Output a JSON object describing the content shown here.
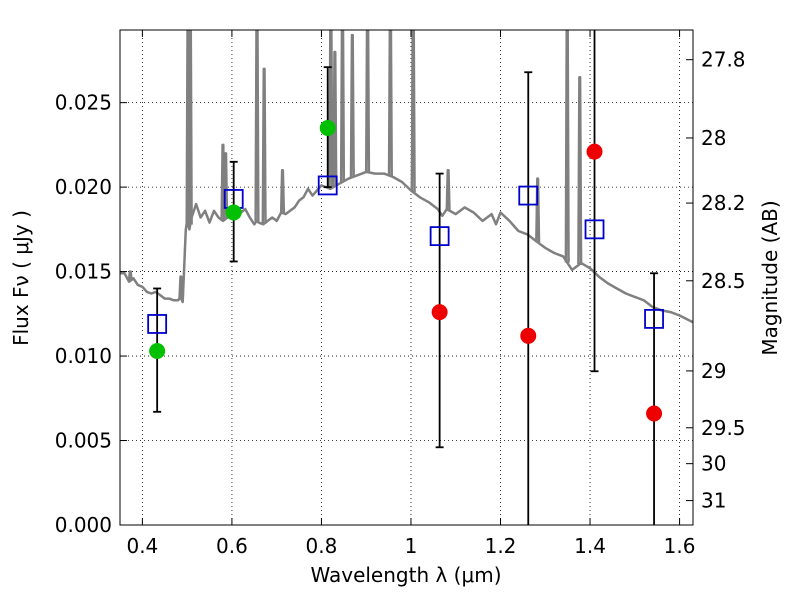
{
  "chart_data": {
    "type": "scatter",
    "xlabel": "Wavelength  λ (μm)",
    "ylabel": "Flux  Fν  ( μJy )",
    "y2label": "Magnitude (AB)",
    "xlim": [
      0.35,
      1.63
    ],
    "ylim": [
      0.0,
      0.0293
    ],
    "grid": true,
    "grid_style": "dotted",
    "x_ticks": [
      {
        "value": 0.4,
        "label": "0.4"
      },
      {
        "value": 0.6,
        "label": "0.6"
      },
      {
        "value": 0.8,
        "label": "0.8"
      },
      {
        "value": 1.0,
        "label": "1"
      },
      {
        "value": 1.2,
        "label": "1.2"
      },
      {
        "value": 1.4,
        "label": "1.4"
      },
      {
        "value": 1.6,
        "label": "1.6"
      }
    ],
    "y_ticks": [
      {
        "value": 0.0,
        "label": "0.000"
      },
      {
        "value": 0.005,
        "label": "0.005"
      },
      {
        "value": 0.01,
        "label": "0.010"
      },
      {
        "value": 0.015,
        "label": "0.015"
      },
      {
        "value": 0.02,
        "label": "0.020"
      },
      {
        "value": 0.025,
        "label": "0.025"
      }
    ],
    "y2_ticks": [
      {
        "mag": 27.8,
        "label": "27.8"
      },
      {
        "mag": 28.0,
        "label": "28"
      },
      {
        "mag": 28.2,
        "label": "28.2"
      },
      {
        "mag": 28.5,
        "label": "28.5"
      },
      {
        "mag": 29.0,
        "label": "29"
      },
      {
        "mag": 29.5,
        "label": "29.5"
      },
      {
        "mag": 30.0,
        "label": "30"
      },
      {
        "mag": 31.0,
        "label": "31"
      }
    ],
    "model_spectrum": {
      "color": "#808080",
      "points": [
        [
          0.35,
          0.0149
        ],
        [
          0.36,
          0.0149
        ],
        [
          0.37,
          0.0144
        ],
        [
          0.38,
          0.0146
        ],
        [
          0.39,
          0.0142
        ],
        [
          0.4,
          0.0141
        ],
        [
          0.41,
          0.0138
        ],
        [
          0.42,
          0.0137
        ],
        [
          0.43,
          0.0138
        ],
        [
          0.44,
          0.0136
        ],
        [
          0.45,
          0.0134
        ],
        [
          0.46,
          0.0134
        ],
        [
          0.47,
          0.0133
        ],
        [
          0.48,
          0.0133
        ],
        [
          0.485,
          0.0135
        ],
        [
          0.49,
          0.0132
        ],
        [
          0.497,
          0.0175
        ],
        [
          0.5,
          0.018
        ],
        [
          0.505,
          0.0175
        ],
        [
          0.51,
          0.0182
        ],
        [
          0.52,
          0.019
        ],
        [
          0.53,
          0.0182
        ],
        [
          0.54,
          0.0186
        ],
        [
          0.55,
          0.0179
        ],
        [
          0.56,
          0.0186
        ],
        [
          0.57,
          0.0182
        ],
        [
          0.58,
          0.018
        ],
        [
          0.59,
          0.0182
        ],
        [
          0.6,
          0.0183
        ],
        [
          0.61,
          0.0185
        ],
        [
          0.62,
          0.0185
        ],
        [
          0.63,
          0.0187
        ],
        [
          0.64,
          0.0182
        ],
        [
          0.65,
          0.0178
        ],
        [
          0.655,
          0.018
        ],
        [
          0.66,
          0.0179
        ],
        [
          0.67,
          0.0178
        ],
        [
          0.68,
          0.018
        ],
        [
          0.69,
          0.0182
        ],
        [
          0.7,
          0.018
        ],
        [
          0.71,
          0.0185
        ],
        [
          0.72,
          0.0184
        ],
        [
          0.73,
          0.0186
        ],
        [
          0.74,
          0.0188
        ],
        [
          0.75,
          0.0192
        ],
        [
          0.76,
          0.0194
        ],
        [
          0.77,
          0.0199
        ],
        [
          0.78,
          0.0195
        ],
        [
          0.79,
          0.0198
        ],
        [
          0.8,
          0.0201
        ],
        [
          0.82,
          0.0199
        ],
        [
          0.84,
          0.0202
        ],
        [
          0.86,
          0.0205
        ],
        [
          0.88,
          0.0207
        ],
        [
          0.9,
          0.0209
        ],
        [
          0.92,
          0.0208
        ],
        [
          0.94,
          0.0208
        ],
        [
          0.96,
          0.0206
        ],
        [
          0.98,
          0.0203
        ],
        [
          1.0,
          0.0198
        ],
        [
          1.02,
          0.0194
        ],
        [
          1.04,
          0.0191
        ],
        [
          1.06,
          0.0187
        ],
        [
          1.07,
          0.0183
        ],
        [
          1.08,
          0.0187
        ],
        [
          1.1,
          0.0184
        ],
        [
          1.12,
          0.0188
        ],
        [
          1.14,
          0.0185
        ],
        [
          1.16,
          0.018
        ],
        [
          1.18,
          0.0184
        ],
        [
          1.19,
          0.0178
        ],
        [
          1.2,
          0.0185
        ],
        [
          1.22,
          0.018
        ],
        [
          1.24,
          0.0174
        ],
        [
          1.26,
          0.0172
        ],
        [
          1.28,
          0.0168
        ],
        [
          1.3,
          0.0164
        ],
        [
          1.32,
          0.0161
        ],
        [
          1.34,
          0.0159
        ],
        [
          1.36,
          0.0151
        ],
        [
          1.38,
          0.0155
        ],
        [
          1.4,
          0.0152
        ],
        [
          1.42,
          0.0147
        ],
        [
          1.44,
          0.0143
        ],
        [
          1.46,
          0.014
        ],
        [
          1.48,
          0.0137
        ],
        [
          1.5,
          0.0135
        ],
        [
          1.52,
          0.0133
        ],
        [
          1.54,
          0.0129
        ],
        [
          1.56,
          0.0127
        ],
        [
          1.58,
          0.0126
        ],
        [
          1.6,
          0.0124
        ],
        [
          1.63,
          0.012
        ]
      ],
      "emission_lines": [
        {
          "x": 0.373,
          "peak": 0.015
        },
        {
          "x": 0.486,
          "peak": 0.0147
        },
        {
          "x": 0.502,
          "peak": 0.0293
        },
        {
          "x": 0.507,
          "peak": 0.0293
        },
        {
          "x": 0.58,
          "peak": 0.0225
        },
        {
          "x": 0.586,
          "peak": 0.022
        },
        {
          "x": 0.656,
          "peak": 0.0293
        },
        {
          "x": 0.672,
          "peak": 0.027
        },
        {
          "x": 0.713,
          "peak": 0.021
        },
        {
          "x": 0.821,
          "peak": 0.0293
        },
        {
          "x": 0.83,
          "peak": 0.028
        },
        {
          "x": 0.847,
          "peak": 0.0293
        },
        {
          "x": 0.869,
          "peak": 0.029
        },
        {
          "x": 0.903,
          "peak": 0.0293
        },
        {
          "x": 0.954,
          "peak": 0.0293
        },
        {
          "x": 1.005,
          "peak": 0.0293
        },
        {
          "x": 1.083,
          "peak": 0.021
        },
        {
          "x": 1.283,
          "peak": 0.0205
        },
        {
          "x": 1.349,
          "peak": 0.0293
        },
        {
          "x": 1.377,
          "peak": 0.0265
        }
      ]
    },
    "series": [
      {
        "marker": "square",
        "color": "#0000cc",
        "x": [
          0.433,
          0.604,
          0.814,
          1.064,
          1.262,
          1.41,
          1.543
        ],
        "y": [
          0.0119,
          0.0193,
          0.0201,
          0.0171,
          0.0195,
          0.0175,
          0.0122
        ]
      },
      {
        "marker": "circle",
        "color": "#00c000",
        "x": [
          0.433,
          0.604,
          0.814
        ],
        "y": [
          0.0103,
          0.0185,
          0.0235
        ],
        "yerr_low": [
          0.0067,
          0.0156,
          0.02
        ],
        "yerr_high": [
          0.014,
          0.0215,
          0.0271
        ]
      },
      {
        "marker": "circle",
        "color": "#ee0000",
        "x": [
          1.064,
          1.262,
          1.41,
          1.543
        ],
        "y": [
          0.0126,
          0.0112,
          0.0221,
          0.0066
        ],
        "yerr_low": [
          0.0046,
          0.0,
          0.0091,
          0.0
        ],
        "yerr_high": [
          0.0208,
          0.0268,
          0.0293,
          0.0149
        ]
      }
    ]
  }
}
